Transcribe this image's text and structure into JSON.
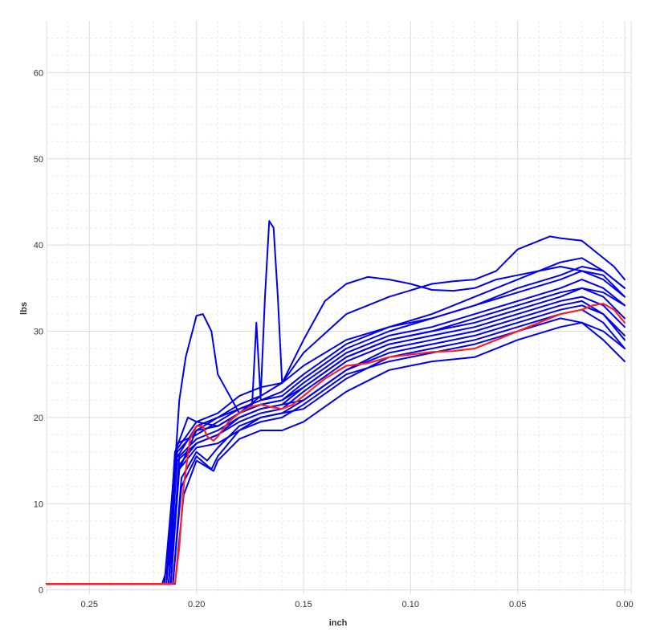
{
  "chart_data": {
    "type": "line",
    "title": "",
    "xlabel": "inch",
    "ylabel": "lbs",
    "x_reversed": true,
    "xlim": [
      0.27,
      -0.003
    ],
    "ylim": [
      -0.5,
      66
    ],
    "x_ticks": [
      0.25,
      0.2,
      0.15,
      0.1,
      0.05,
      0.0
    ],
    "x_tick_labels": [
      "0.25",
      "0.20",
      "0.15",
      "0.10",
      "0.05",
      "0.00"
    ],
    "y_ticks": [
      0,
      10,
      20,
      30,
      40,
      50,
      60
    ],
    "y_tick_labels": [
      "0",
      "10",
      "20",
      "30",
      "40",
      "50",
      "60"
    ],
    "grid": true,
    "colors": {
      "blue_series": "#0000ee",
      "highlight": "#ff2020",
      "grid": "#dcdcdc"
    },
    "series": [
      {
        "color": "#0000ee",
        "x": [
          0.27,
          0.216,
          0.213,
          0.208,
          0.205,
          0.2,
          0.197,
          0.193,
          0.19,
          0.18,
          0.17,
          0.16,
          0.15,
          0.13,
          0.11,
          0.09,
          0.08,
          0.07,
          0.06,
          0.05,
          0.045,
          0.035,
          0.03,
          0.02,
          0.015,
          0.005,
          0.0
        ],
        "y": [
          0.7,
          0.7,
          3.0,
          22.0,
          27.0,
          31.8,
          32.0,
          30.0,
          25.0,
          20.5,
          22.5,
          24.0,
          27.5,
          32.0,
          34.0,
          35.5,
          35.8,
          36.0,
          37.0,
          39.5,
          40.0,
          41.0,
          40.8,
          40.5,
          39.5,
          37.5,
          36.0
        ]
      },
      {
        "color": "#0000ee",
        "x": [
          0.27,
          0.214,
          0.21,
          0.2,
          0.19,
          0.18,
          0.17,
          0.16,
          0.15,
          0.14,
          0.13,
          0.12,
          0.11,
          0.1,
          0.09,
          0.08,
          0.07,
          0.06,
          0.05,
          0.04,
          0.03,
          0.02,
          0.01,
          0.0
        ],
        "y": [
          0.7,
          0.7,
          16.0,
          19.5,
          20.5,
          22.5,
          23.5,
          24.0,
          29.0,
          33.5,
          35.5,
          36.3,
          36.0,
          35.5,
          34.8,
          34.7,
          35.0,
          36.0,
          36.5,
          37.0,
          37.5,
          37.0,
          36.0,
          34.0
        ]
      },
      {
        "color": "#0000ee",
        "x": [
          0.27,
          0.215,
          0.21,
          0.2,
          0.19,
          0.18,
          0.17,
          0.168,
          0.166,
          0.164,
          0.162,
          0.16,
          0.15,
          0.13,
          0.11,
          0.09,
          0.07,
          0.05,
          0.03,
          0.02,
          0.01,
          0.0
        ],
        "y": [
          0.7,
          0.7,
          15.0,
          19.0,
          20.0,
          21.5,
          22.5,
          34.0,
          42.8,
          42.0,
          34.0,
          24.0,
          26.0,
          29.0,
          30.5,
          32.0,
          34.0,
          36.0,
          38.0,
          38.5,
          37.0,
          35.0
        ]
      },
      {
        "color": "#0000ee",
        "x": [
          0.27,
          0.213,
          0.208,
          0.2,
          0.19,
          0.18,
          0.174,
          0.172,
          0.17,
          0.16,
          0.15,
          0.13,
          0.11,
          0.09,
          0.07,
          0.05,
          0.03,
          0.02,
          0.01,
          0.0
        ],
        "y": [
          0.7,
          0.7,
          14.0,
          18.5,
          20.0,
          21.0,
          21.5,
          31.0,
          22.0,
          23.0,
          25.0,
          28.5,
          30.5,
          31.5,
          33.0,
          35.0,
          36.5,
          37.5,
          37.0,
          35.0
        ]
      },
      {
        "color": "#0000ee",
        "x": [
          0.27,
          0.214,
          0.209,
          0.2,
          0.19,
          0.18,
          0.17,
          0.16,
          0.15,
          0.13,
          0.11,
          0.09,
          0.07,
          0.05,
          0.03,
          0.02,
          0.01,
          0.0
        ],
        "y": [
          0.7,
          0.7,
          17.0,
          18.0,
          19.5,
          21.0,
          22.0,
          22.5,
          24.5,
          28.0,
          30.0,
          31.5,
          33.0,
          34.5,
          36.0,
          37.0,
          36.5,
          34.0
        ]
      },
      {
        "color": "#0000ee",
        "x": [
          0.27,
          0.213,
          0.209,
          0.2,
          0.19,
          0.18,
          0.17,
          0.16,
          0.15,
          0.13,
          0.11,
          0.09,
          0.07,
          0.05,
          0.03,
          0.02,
          0.01,
          0.0
        ],
        "y": [
          0.7,
          0.7,
          16.0,
          18.5,
          19.0,
          20.5,
          21.5,
          22.0,
          24.0,
          27.5,
          29.5,
          30.5,
          32.0,
          33.5,
          35.0,
          36.0,
          35.0,
          33.0
        ]
      },
      {
        "color": "#0000ee",
        "x": [
          0.27,
          0.212,
          0.208,
          0.2,
          0.19,
          0.18,
          0.17,
          0.16,
          0.15,
          0.13,
          0.11,
          0.09,
          0.07,
          0.05,
          0.03,
          0.02,
          0.01,
          0.0
        ],
        "y": [
          0.7,
          0.7,
          15.5,
          17.5,
          18.5,
          20.0,
          21.0,
          21.5,
          23.5,
          27.0,
          29.0,
          30.0,
          31.0,
          32.5,
          34.0,
          35.0,
          34.0,
          31.5
        ]
      },
      {
        "color": "#0000ee",
        "x": [
          0.27,
          0.212,
          0.208,
          0.2,
          0.19,
          0.18,
          0.17,
          0.16,
          0.15,
          0.13,
          0.11,
          0.09,
          0.07,
          0.05,
          0.03,
          0.02,
          0.01,
          0.0
        ],
        "y": [
          0.7,
          0.7,
          14.5,
          17.0,
          18.0,
          19.5,
          20.5,
          21.0,
          23.0,
          26.5,
          28.5,
          29.5,
          30.5,
          32.0,
          33.5,
          34.0,
          33.0,
          30.5
        ]
      },
      {
        "color": "#0000ee",
        "x": [
          0.27,
          0.211,
          0.207,
          0.2,
          0.195,
          0.19,
          0.18,
          0.17,
          0.16,
          0.15,
          0.13,
          0.11,
          0.09,
          0.07,
          0.05,
          0.03,
          0.02,
          0.01,
          0.0
        ],
        "y": [
          0.7,
          0.7,
          13.0,
          16.0,
          15.0,
          16.5,
          19.0,
          20.0,
          20.5,
          22.0,
          25.5,
          27.5,
          28.5,
          29.5,
          31.0,
          32.5,
          33.0,
          32.0,
          29.5
        ]
      },
      {
        "color": "#0000ee",
        "x": [
          0.27,
          0.211,
          0.207,
          0.2,
          0.193,
          0.19,
          0.18,
          0.17,
          0.16,
          0.15,
          0.13,
          0.11,
          0.09,
          0.07,
          0.05,
          0.03,
          0.02,
          0.01,
          0.0
        ],
        "y": [
          0.7,
          0.7,
          12.0,
          15.5,
          14.0,
          15.5,
          18.5,
          19.5,
          20.0,
          21.5,
          25.0,
          26.5,
          27.5,
          28.5,
          30.0,
          31.5,
          31.0,
          30.0,
          28.0
        ]
      },
      {
        "color": "#0000ee",
        "x": [
          0.27,
          0.21,
          0.206,
          0.2,
          0.192,
          0.19,
          0.18,
          0.17,
          0.16,
          0.15,
          0.13,
          0.11,
          0.09,
          0.07,
          0.05,
          0.03,
          0.02,
          0.01,
          0.0
        ],
        "y": [
          0.7,
          0.7,
          11.0,
          15.0,
          13.8,
          15.0,
          17.5,
          18.5,
          18.5,
          19.5,
          23.0,
          25.5,
          26.5,
          27.0,
          29.0,
          30.5,
          31.0,
          29.0,
          26.5
        ]
      },
      {
        "color": "#0000ee",
        "x": [
          0.27,
          0.214,
          0.21,
          0.204,
          0.2,
          0.19,
          0.18,
          0.17,
          0.16,
          0.15,
          0.13,
          0.11,
          0.09,
          0.07,
          0.05,
          0.03,
          0.02,
          0.01,
          0.0
        ],
        "y": [
          0.7,
          0.7,
          16.0,
          20.0,
          19.5,
          19.0,
          20.5,
          21.5,
          22.0,
          23.5,
          27.0,
          29.0,
          30.0,
          31.5,
          33.0,
          34.5,
          35.0,
          34.5,
          33.0
        ]
      },
      {
        "color": "#0000ee",
        "x": [
          0.27,
          0.213,
          0.209,
          0.2,
          0.19,
          0.18,
          0.17,
          0.16,
          0.15,
          0.13,
          0.11,
          0.09,
          0.07,
          0.05,
          0.03,
          0.02,
          0.01,
          0.0
        ],
        "y": [
          0.7,
          0.7,
          15.0,
          17.0,
          18.0,
          20.0,
          21.0,
          21.5,
          22.0,
          25.5,
          28.0,
          29.0,
          30.0,
          31.5,
          33.0,
          33.5,
          32.0,
          29.0
        ]
      },
      {
        "color": "#0000ee",
        "x": [
          0.27,
          0.212,
          0.208,
          0.2,
          0.19,
          0.18,
          0.17,
          0.16,
          0.15,
          0.13,
          0.11,
          0.09,
          0.07,
          0.05,
          0.03,
          0.02,
          0.01,
          0.0
        ],
        "y": [
          0.7,
          0.7,
          14.0,
          16.5,
          17.0,
          18.5,
          20.0,
          20.5,
          21.0,
          24.5,
          27.0,
          28.0,
          29.0,
          30.5,
          32.0,
          32.5,
          31.0,
          28.0
        ]
      },
      {
        "color": "#ff2020",
        "x": [
          0.27,
          0.215,
          0.212,
          0.21,
          0.208,
          0.206,
          0.203,
          0.2,
          0.197,
          0.195,
          0.192,
          0.19,
          0.185,
          0.18,
          0.175,
          0.17,
          0.165,
          0.16,
          0.155,
          0.15,
          0.145,
          0.14,
          0.13,
          0.12,
          0.11,
          0.1,
          0.09,
          0.08,
          0.07,
          0.06,
          0.05,
          0.04,
          0.03,
          0.02,
          0.015,
          0.01,
          0.005,
          0.0
        ],
        "y": [
          0.7,
          0.7,
          0.7,
          0.8,
          5.0,
          12.0,
          17.5,
          19.0,
          19.0,
          17.8,
          17.3,
          17.8,
          19.5,
          20.5,
          21.2,
          21.5,
          21.2,
          21.0,
          21.5,
          22.5,
          23.5,
          24.5,
          26.0,
          26.3,
          27.0,
          27.3,
          27.6,
          27.7,
          28.0,
          29.0,
          30.0,
          31.0,
          32.0,
          32.5,
          33.0,
          33.2,
          32.5,
          31.0
        ]
      }
    ]
  }
}
